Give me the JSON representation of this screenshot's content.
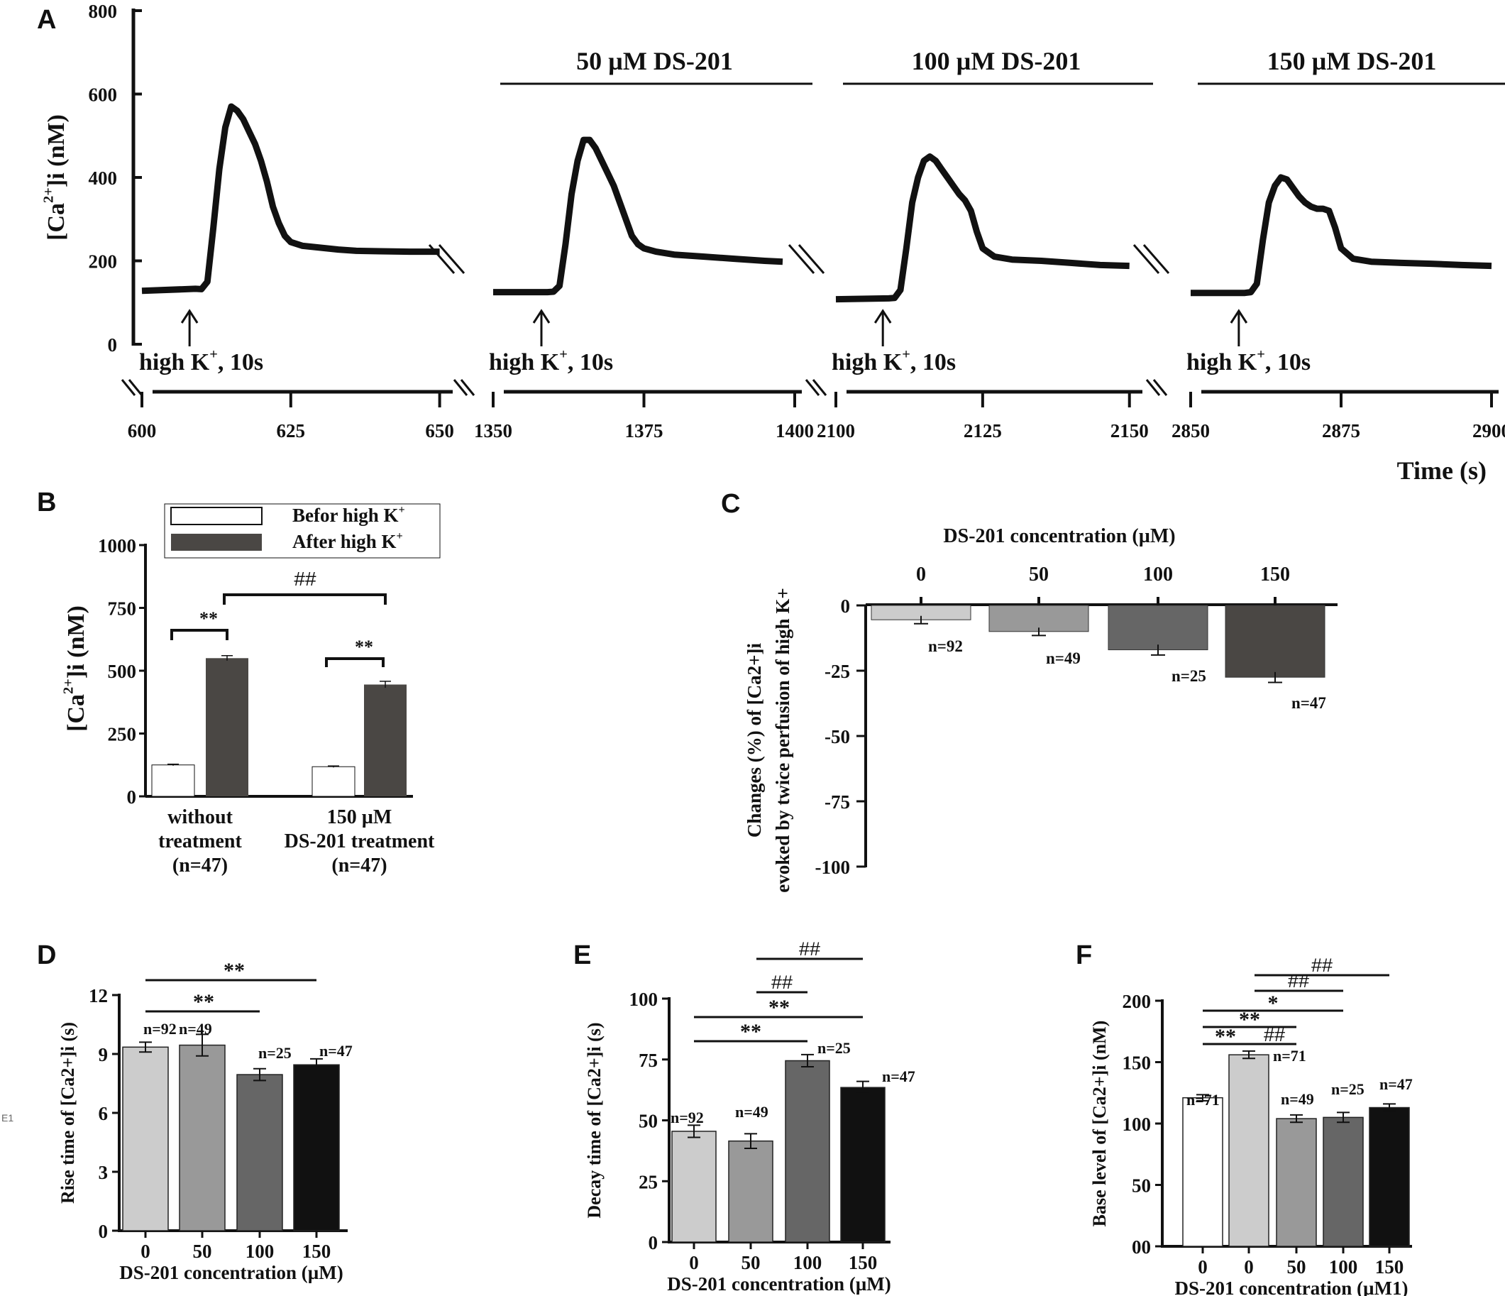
{
  "labels": {
    "panel_a": "A",
    "panel_b": "B",
    "panel_c": "C",
    "panel_d": "D",
    "panel_e": "E",
    "panel_f": "F",
    "stray": "E1"
  },
  "colors": {
    "black": "#111111",
    "white": "#ffffff",
    "light_gray": "#cccccc",
    "mid_gray": "#999999",
    "dark_gray": "#666666",
    "darker_gray": "#4a4744"
  },
  "chart_data": [
    {
      "panel": "A",
      "type": "line",
      "ylabel": "[Ca2+]i (nM)",
      "ylabel_main": "[Ca",
      "ylabel_sup": "2+",
      "ylabel_tail": "]i (nM)",
      "xlabel": "Time (s)",
      "ylim": [
        0,
        800
      ],
      "yticks": [
        "0",
        "200",
        "400",
        "600",
        "800"
      ],
      "stimulus_label": "high K+, 10s",
      "stimulus_main": "high K",
      "stimulus_sup": "+",
      "stimulus_tail": ", 10s",
      "segments": [
        {
          "treatment": "",
          "x": [
            600,
            609,
            610,
            611,
            612,
            613,
            614,
            615,
            616,
            617,
            618,
            619,
            620,
            621,
            622,
            623,
            624,
            625,
            627,
            629,
            631,
            633,
            636,
            640,
            645,
            650
          ],
          "y": [
            128,
            133,
            132,
            150,
            280,
            420,
            520,
            570,
            560,
            540,
            510,
            480,
            440,
            390,
            330,
            290,
            260,
            245,
            236,
            233,
            230,
            227,
            224,
            223,
            222,
            222
          ],
          "xticks": [
            "600",
            "625",
            "650"
          ],
          "xlim": [
            600,
            651
          ]
        },
        {
          "treatment": "50 µM DS-201",
          "x": [
            1350,
            1359,
            1360,
            1361,
            1362,
            1363,
            1364,
            1365,
            1366,
            1367,
            1368,
            1369,
            1370,
            1371,
            1372,
            1373,
            1374,
            1375,
            1377,
            1380,
            1385,
            1390,
            1395,
            1398
          ],
          "y": [
            125,
            125,
            126,
            140,
            240,
            360,
            440,
            490,
            490,
            470,
            440,
            410,
            380,
            340,
            300,
            260,
            240,
            230,
            222,
            215,
            210,
            205,
            200,
            198
          ],
          "xticks": [
            "1350",
            "1375",
            "1400"
          ],
          "xlim": [
            1350,
            1400
          ]
        },
        {
          "treatment": "100 µM DS-201",
          "x": [
            2100,
            2109,
            2110,
            2111,
            2112,
            2113,
            2114,
            2115,
            2116,
            2117,
            2118,
            2119,
            2120,
            2121,
            2122,
            2123,
            2124,
            2125,
            2127,
            2130,
            2135,
            2140,
            2145,
            2150
          ],
          "y": [
            108,
            110,
            111,
            130,
            230,
            340,
            400,
            440,
            450,
            440,
            420,
            400,
            380,
            360,
            345,
            320,
            270,
            230,
            210,
            203,
            200,
            195,
            190,
            188
          ],
          "xticks": [
            "2100",
            "2125",
            "2150"
          ],
          "xlim": [
            2100,
            2151
          ]
        },
        {
          "treatment": "150 µM DS-201",
          "x": [
            2850,
            2859,
            2860,
            2861,
            2862,
            2863,
            2864,
            2865,
            2866,
            2867,
            2868,
            2869,
            2870,
            2871,
            2872,
            2873,
            2874,
            2875,
            2877,
            2880,
            2885,
            2890,
            2895,
            2900
          ],
          "y": [
            123,
            123,
            125,
            145,
            250,
            340,
            380,
            400,
            395,
            375,
            355,
            340,
            330,
            325,
            325,
            320,
            280,
            230,
            205,
            198,
            195,
            193,
            190,
            188
          ],
          "xticks": [
            "2850",
            "2875",
            "2900"
          ],
          "xlim": [
            2850,
            2900
          ]
        }
      ]
    },
    {
      "panel": "B",
      "type": "bar",
      "ylabel": "[Ca2+]i (nM)",
      "ylabel_main": "[Ca",
      "ylabel_sup": "2+",
      "ylabel_tail": "]i (nM)",
      "ylim": [
        0,
        1000
      ],
      "yticks": [
        "0",
        "250",
        "500",
        "750",
        "1000"
      ],
      "legend": [
        {
          "main": "Befor high K",
          "sup": "+"
        },
        {
          "main": "After high K",
          "sup": "+"
        }
      ],
      "groups": [
        {
          "lines": [
            "without",
            "treatment",
            "(n=47)"
          ],
          "values": [
            125,
            550
          ],
          "errors": [
            3,
            10
          ]
        },
        {
          "lines": [
            "150 µM",
            "DS-201 treatment",
            "(n=47)"
          ],
          "values": [
            118,
            445
          ],
          "errors": [
            3,
            13
          ]
        }
      ],
      "annotations": [
        "**",
        "**",
        "##"
      ]
    },
    {
      "panel": "C",
      "type": "bar",
      "ylabel_line1": "Changes  (%)  of [Ca2+]i",
      "ylabel_line2": "evoked by twice perfusion of high K+",
      "title": "DS-201 concentration (µM)",
      "ylim": [
        -100,
        0
      ],
      "yticks": [
        "0",
        "-25",
        "-50",
        "-75",
        "-100"
      ],
      "categories": [
        "0",
        "50",
        "100",
        "150"
      ],
      "values": [
        -5.5,
        -10,
        -17,
        -27.5
      ],
      "errors": [
        1.5,
        1.5,
        2,
        2
      ],
      "n_labels": [
        "n=92",
        "n=49",
        "n=25",
        "n=47"
      ]
    },
    {
      "panel": "D",
      "type": "bar",
      "ylabel": "Rise time of [Ca2+]i (s)",
      "xlabel": "DS-201 concentration (µM)",
      "ylim": [
        0,
        12
      ],
      "yticks": [
        "0",
        "3",
        "6",
        "9",
        "12"
      ],
      "categories": [
        "0",
        "50",
        "100",
        "150"
      ],
      "values": [
        9.35,
        9.45,
        7.95,
        8.45
      ],
      "errors": [
        0.25,
        0.55,
        0.3,
        0.3
      ],
      "n_labels": [
        "n=92",
        "n=49",
        "n=25",
        "n=47"
      ],
      "annotations": [
        "**",
        "**"
      ]
    },
    {
      "panel": "E",
      "type": "bar",
      "ylabel": "Decay time of [Ca2+]i (s)",
      "xlabel": "DS-201 concentration (µM)",
      "ylim": [
        0,
        100
      ],
      "yticks": [
        "0",
        "25",
        "50",
        "75",
        "100"
      ],
      "categories": [
        "0",
        "50",
        "100",
        "150"
      ],
      "values": [
        45.5,
        41.5,
        74.5,
        63.5
      ],
      "errors": [
        2.5,
        3,
        2.5,
        2.5
      ],
      "n_labels": [
        "n=92",
        "n=49",
        "n=25",
        "n=47"
      ],
      "annotations": [
        "##",
        "##",
        "**",
        "**"
      ]
    },
    {
      "panel": "F",
      "type": "bar",
      "ylabel": "Base level of [Ca2+]i (nM)",
      "xlabel": "DS-201 concentration (µM1)",
      "ylim": [
        0,
        200
      ],
      "yticks": [
        "00",
        "50",
        "100",
        "150",
        "200"
      ],
      "categories": [
        "0",
        "0",
        "50",
        "100",
        "150"
      ],
      "values": [
        121,
        156,
        104,
        105,
        113
      ],
      "errors": [
        2.5,
        3,
        3,
        4,
        3
      ],
      "n_labels": [
        "n=71",
        "n=71",
        "n=49",
        "n=25",
        "n=47"
      ],
      "annotations": [
        "##",
        "##",
        "*",
        "**",
        "**",
        "##"
      ]
    }
  ]
}
